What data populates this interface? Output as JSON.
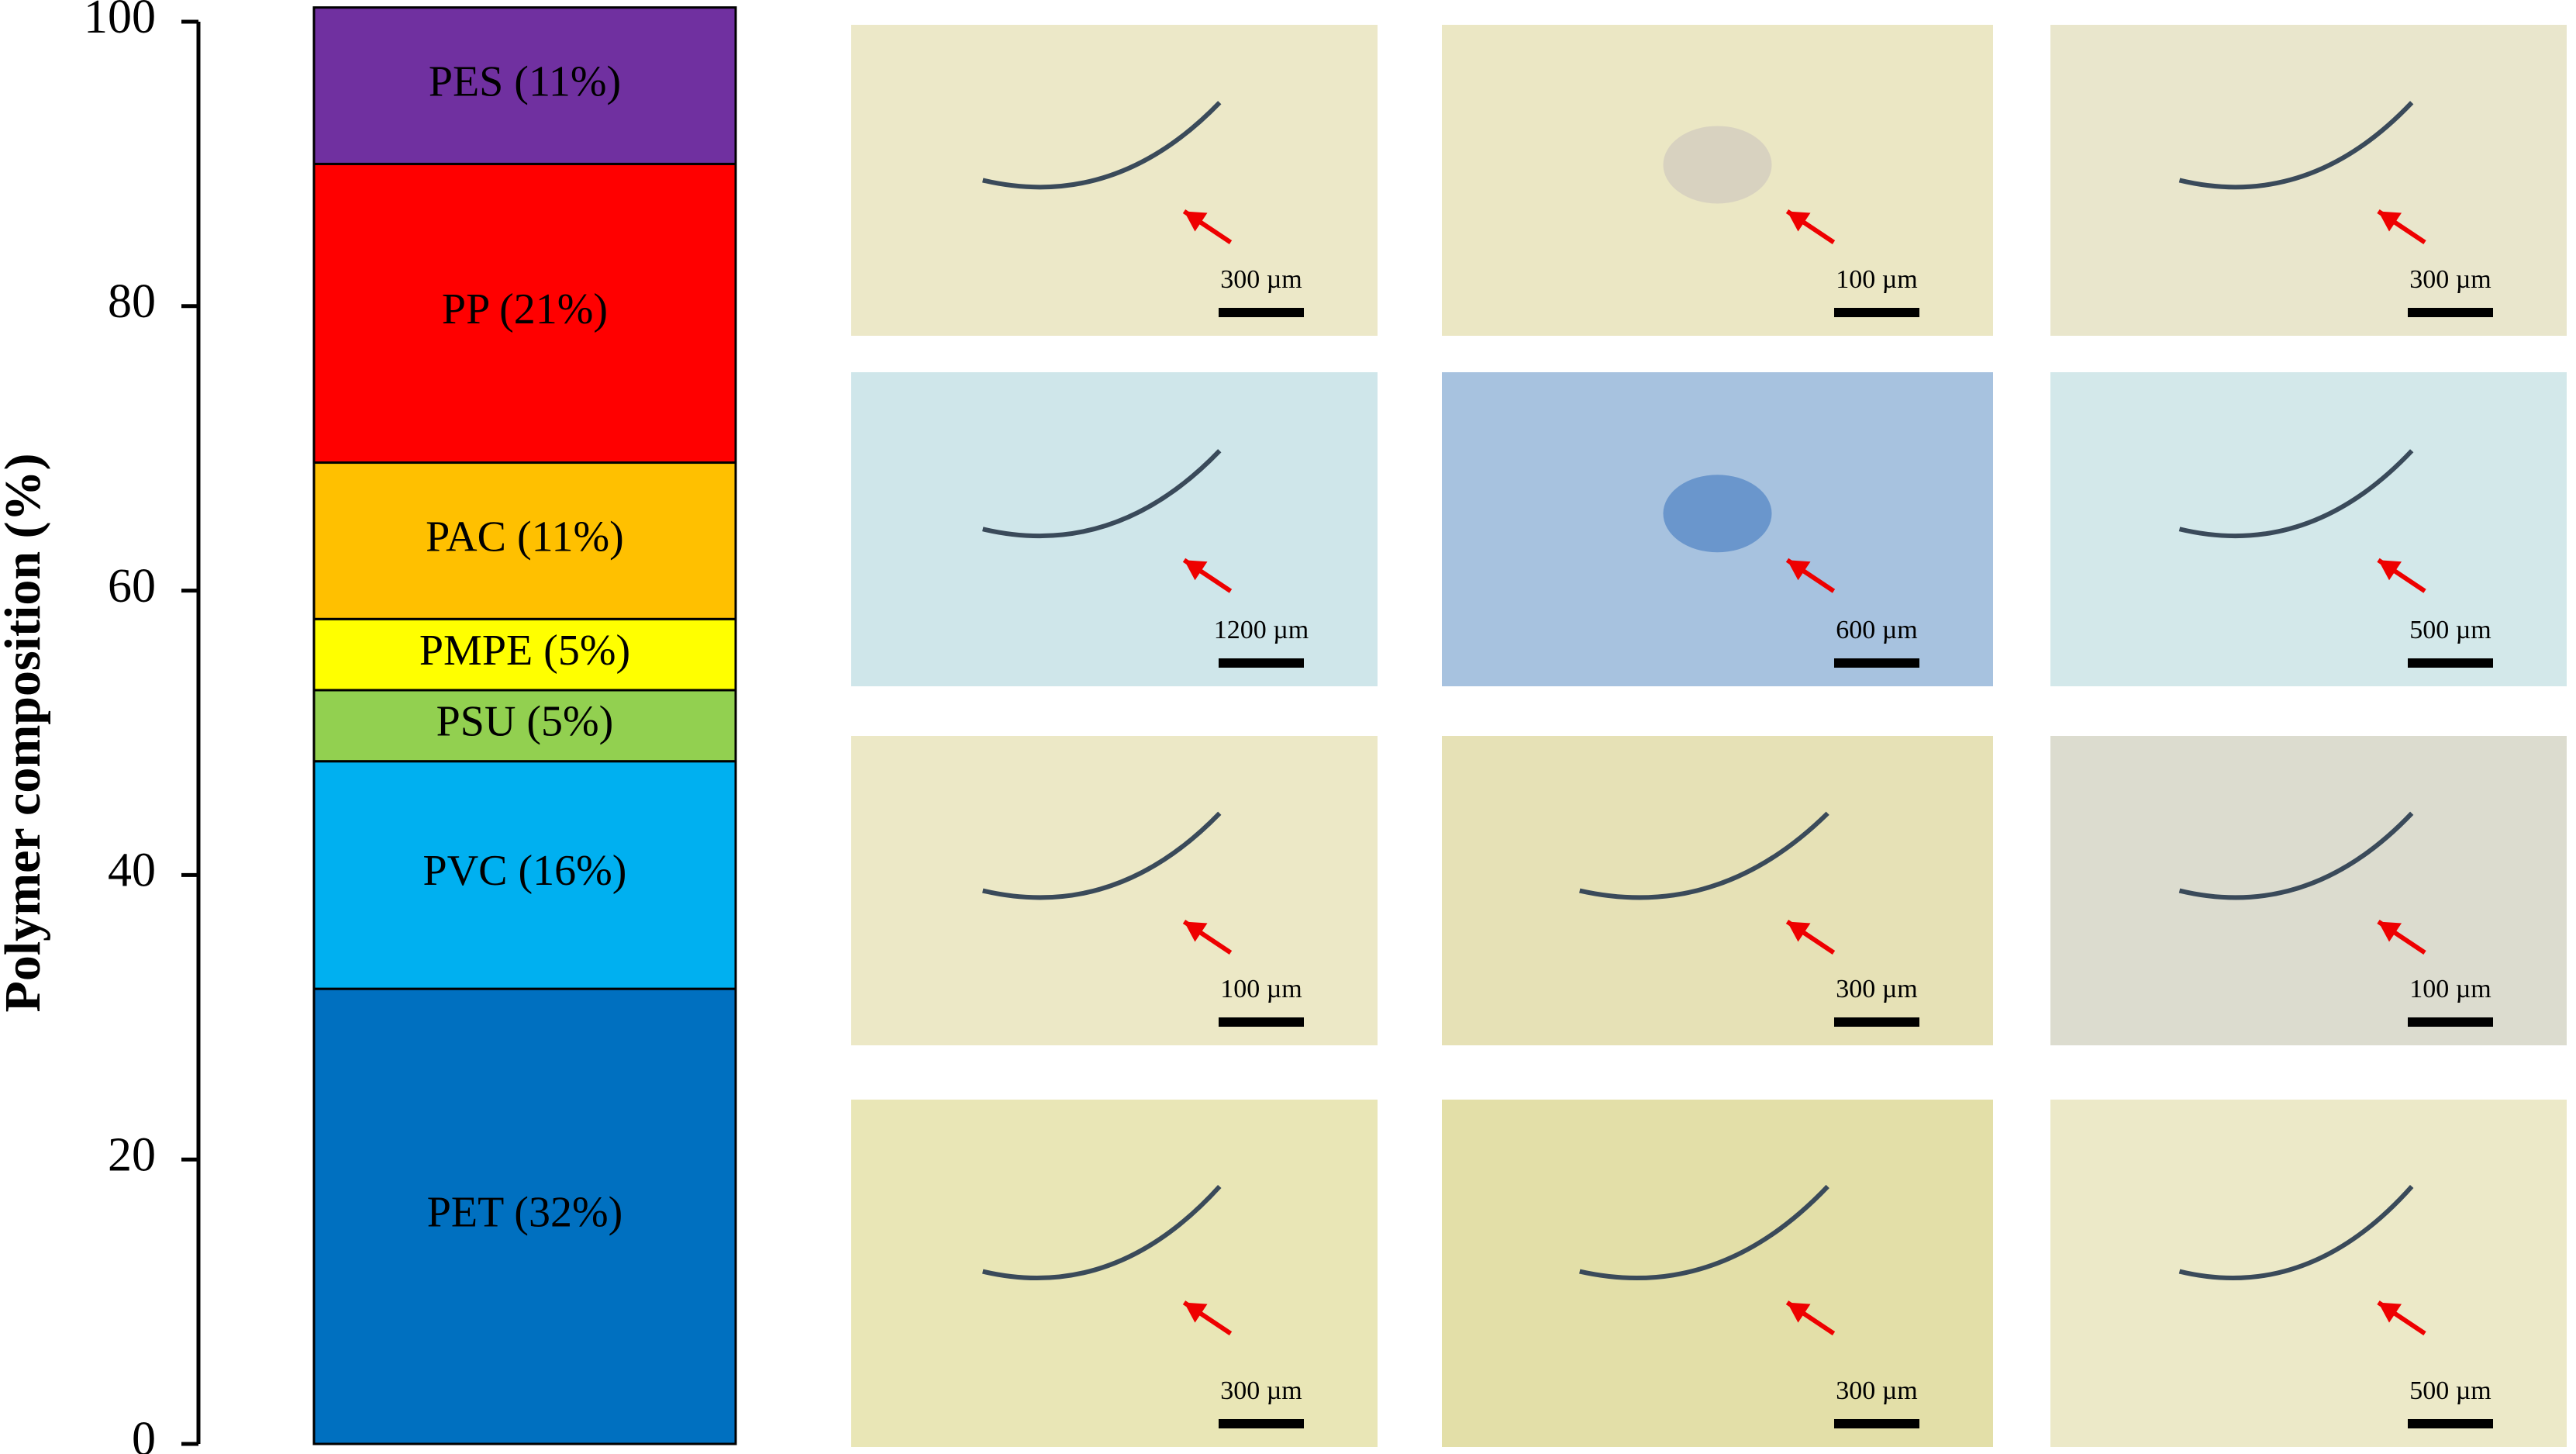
{
  "chart_data": {
    "type": "stacked-bar",
    "y_label": "Polymer composition (%)",
    "series": [
      {
        "name": "PET (32%)",
        "color": "#0070c0",
        "values": [
          32
        ]
      },
      {
        "name": "PVC (16%)",
        "color": "#00b0f0",
        "values": [
          16
        ]
      },
      {
        "name": "PSU (5%)",
        "color": "#92d050",
        "values": [
          5
        ]
      },
      {
        "name": "PMPE (5%)",
        "color": "#ffff00",
        "values": [
          5
        ]
      },
      {
        "name": "PAC (11%)",
        "color": "#ffc000",
        "values": [
          11
        ]
      },
      {
        "name": "PP (21%)",
        "color": "#ff0000",
        "values": [
          21
        ]
      },
      {
        "name": "PES (11%)",
        "color": "#7030a0",
        "values": [
          11
        ]
      }
    ],
    "ylim": [
      0,
      100
    ],
    "yticks": [
      0,
      20,
      40,
      60,
      80,
      100
    ]
  },
  "images": [
    {
      "scale": "300 µm"
    },
    {
      "scale": "100 µm"
    },
    {
      "scale": "300 µm"
    },
    {
      "scale": "1200 µm"
    },
    {
      "scale": "600 µm"
    },
    {
      "scale": "500 µm"
    },
    {
      "scale": "100 µm"
    },
    {
      "scale": "300 µm"
    },
    {
      "scale": "100 µm"
    },
    {
      "scale": "300 µm"
    },
    {
      "scale": "300 µm"
    },
    {
      "scale": "500 µm"
    }
  ]
}
